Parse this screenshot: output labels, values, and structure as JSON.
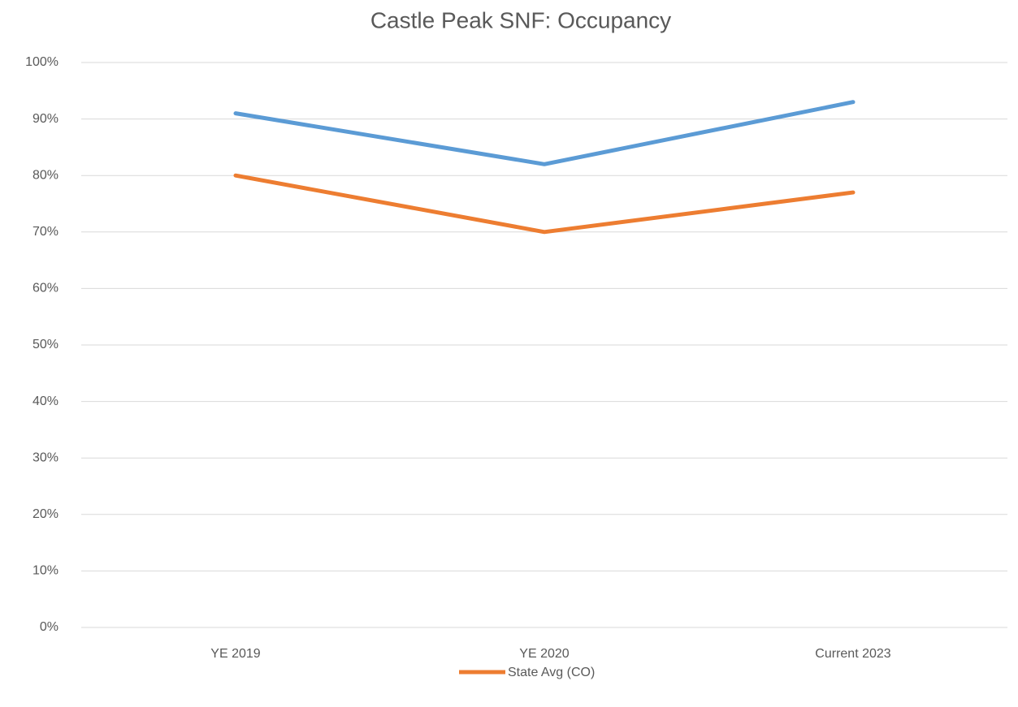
{
  "chart_data": {
    "type": "line",
    "title": "Castle Peak SNF: Occupancy",
    "categories": [
      "YE 2019",
      "YE 2020",
      "Current 2023"
    ],
    "series": [
      {
        "color": "#5b9bd5",
        "values": [
          91,
          82,
          93
        ]
      },
      {
        "name": "State Avg (CO)",
        "color": "#ed7d31",
        "values": [
          80,
          70,
          77
        ]
      }
    ],
    "ylim": [
      0,
      100
    ],
    "yticks": [
      {
        "value": 0,
        "label": "0%"
      },
      {
        "value": 10,
        "label": "10%"
      },
      {
        "value": 20,
        "label": "20%"
      },
      {
        "value": 30,
        "label": "30%"
      },
      {
        "value": 40,
        "label": "40%"
      },
      {
        "value": 50,
        "label": "50%"
      },
      {
        "value": 60,
        "label": "60%"
      },
      {
        "value": 70,
        "label": "70%"
      },
      {
        "value": 80,
        "label": "80%"
      },
      {
        "value": 90,
        "label": "90%"
      },
      {
        "value": 100,
        "label": "100%"
      }
    ],
    "grid": true,
    "legend": "bottom"
  }
}
